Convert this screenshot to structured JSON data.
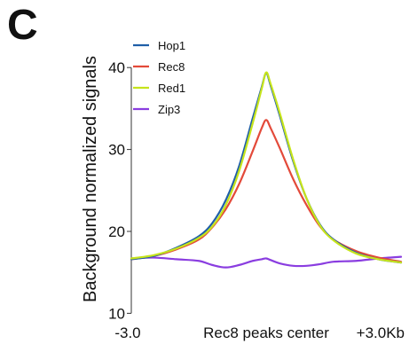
{
  "panel_label": "C",
  "chart_data": {
    "type": "line",
    "title": "",
    "ylabel": "Background normalized signals",
    "xlabel": "Rec8 peaks center",
    "xlim": [
      -3.0,
      3.0
    ],
    "ylim": [
      9.5,
      45
    ],
    "x_ticks": [
      -3.0,
      0.0,
      3.0
    ],
    "x_tick_labels": [
      "-3.0",
      "Rec8 peaks center",
      "+3.0Kb"
    ],
    "y_ticks": [
      10,
      20,
      30,
      40
    ],
    "y_tick_labels": [
      "10",
      "20",
      "30",
      "40"
    ],
    "grid": false,
    "legend_position": "top-left",
    "x": [
      -3.0,
      -2.5,
      -2.0,
      -1.5,
      -1.2,
      -0.9,
      -0.6,
      -0.3,
      -0.1,
      0.0,
      0.1,
      0.3,
      0.6,
      0.9,
      1.2,
      1.5,
      2.0,
      2.5,
      3.0
    ],
    "series": [
      {
        "name": "Hop1",
        "color": "#1f5fa8",
        "values": [
          16.6,
          17.0,
          18.0,
          19.4,
          21.0,
          23.8,
          28.0,
          33.8,
          37.6,
          39.3,
          37.8,
          34.2,
          28.6,
          24.0,
          20.8,
          19.0,
          17.4,
          16.6,
          16.2
        ]
      },
      {
        "name": "Rec8",
        "color": "#e34a3a",
        "values": [
          16.6,
          17.0,
          17.8,
          19.0,
          20.5,
          22.7,
          25.8,
          29.8,
          32.6,
          33.6,
          32.6,
          30.2,
          26.4,
          23.2,
          20.6,
          19.0,
          17.6,
          16.8,
          16.3
        ]
      },
      {
        "name": "Red1",
        "color": "#c6e41b",
        "values": [
          16.7,
          17.1,
          17.9,
          19.2,
          20.6,
          23.2,
          27.4,
          33.2,
          37.4,
          39.4,
          38.0,
          34.5,
          28.8,
          24.0,
          20.7,
          18.9,
          17.3,
          16.6,
          16.2
        ]
      },
      {
        "name": "Zip3",
        "color": "#8a3de0",
        "values": [
          16.7,
          16.8,
          16.6,
          16.4,
          15.9,
          15.6,
          15.9,
          16.4,
          16.6,
          16.7,
          16.5,
          16.1,
          15.8,
          15.8,
          16.0,
          16.3,
          16.4,
          16.7,
          16.9
        ]
      }
    ]
  }
}
